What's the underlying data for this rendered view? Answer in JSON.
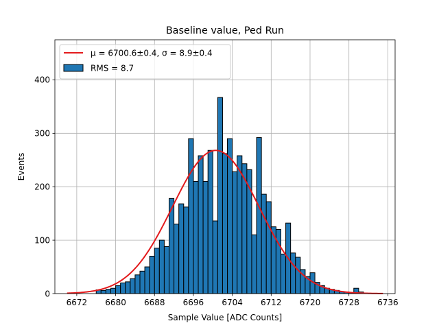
{
  "chart_data": {
    "type": "bar",
    "title": "Baseline value, Ped Run",
    "xlabel": "Sample Value [ADC Counts]",
    "ylabel": "Events",
    "xlim": [
      6667.5,
      6737.5
    ],
    "ylim": [
      0,
      475
    ],
    "grid": true,
    "legend_position": "top-left",
    "xticks": [
      6672,
      6680,
      6688,
      6696,
      6704,
      6712,
      6720,
      6728,
      6736
    ],
    "yticks": [
      0,
      100,
      200,
      300,
      400
    ],
    "histogram": {
      "bin_start": 6676,
      "bin_width": 1,
      "counts": [
        7,
        6,
        8,
        10,
        15,
        20,
        22,
        28,
        35,
        42,
        50,
        70,
        85,
        100,
        88,
        178,
        130,
        168,
        162,
        290,
        210,
        258,
        210,
        268,
        136,
        367,
        262,
        290,
        228,
        258,
        243,
        232,
        110,
        292,
        186,
        172,
        125,
        120,
        74,
        132,
        76,
        68,
        45,
        32,
        39,
        21,
        15,
        10,
        8,
        6,
        4,
        3,
        2,
        10,
        3
      ],
      "color": "#1f77b4",
      "edgecolor": "#000000"
    },
    "fit": {
      "type": "gaussian",
      "mu": 6700.6,
      "sigma": 8.9,
      "peak": 268,
      "x_range": [
        6670,
        6735
      ],
      "color": "#e31a1c"
    },
    "legend": [
      {
        "kind": "line",
        "label": "μ = 6700.6±0.4, σ = 8.9±0.4"
      },
      {
        "kind": "patch",
        "label": "RMS = 8.7"
      }
    ]
  }
}
